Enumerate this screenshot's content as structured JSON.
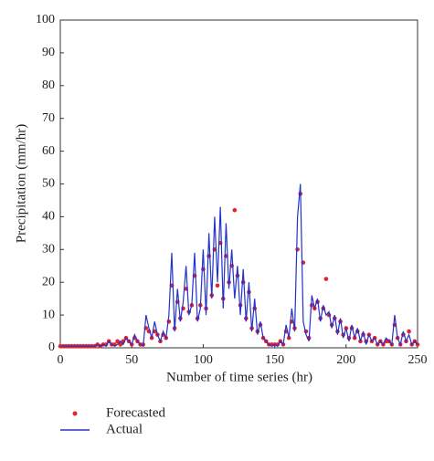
{
  "chart_data": {
    "type": "line",
    "xlabel": "Number of time series (hr)",
    "ylabel": "Precipitation (mm/hr)",
    "x": [
      0,
      2,
      4,
      6,
      8,
      10,
      12,
      14,
      16,
      18,
      20,
      22,
      24,
      26,
      28,
      30,
      32,
      34,
      36,
      38,
      40,
      42,
      44,
      46,
      48,
      50,
      52,
      54,
      56,
      58,
      60,
      62,
      64,
      66,
      68,
      70,
      72,
      74,
      76,
      78,
      80,
      82,
      84,
      86,
      88,
      90,
      92,
      94,
      96,
      98,
      100,
      102,
      104,
      106,
      108,
      110,
      112,
      114,
      116,
      118,
      120,
      122,
      124,
      126,
      128,
      130,
      132,
      134,
      136,
      138,
      140,
      142,
      144,
      146,
      148,
      150,
      152,
      154,
      156,
      158,
      160,
      162,
      164,
      166,
      168,
      170,
      172,
      174,
      176,
      178,
      180,
      182,
      184,
      186,
      188,
      190,
      192,
      194,
      196,
      198,
      200,
      202,
      204,
      206,
      208,
      210,
      212,
      214,
      216,
      218,
      220,
      222,
      224,
      226,
      228,
      230,
      232,
      234,
      236,
      238,
      240,
      242,
      244,
      246,
      248,
      250
    ],
    "series": [
      {
        "name": "Forecasted",
        "color": "#e8222a",
        "style": "markers",
        "values": [
          0.5,
          0.5,
          0.5,
          0.5,
          0.5,
          0.5,
          0.5,
          0.5,
          0.5,
          0.5,
          0.5,
          0.5,
          0.5,
          1,
          0.5,
          1,
          1,
          2,
          1,
          1,
          2,
          1,
          2,
          3,
          2,
          1,
          3,
          2,
          1,
          1,
          6,
          5,
          3,
          5,
          4,
          2,
          4,
          3,
          8,
          19,
          6,
          14,
          9,
          12,
          18,
          11,
          13,
          22,
          9,
          13,
          24,
          12,
          28,
          16,
          30,
          19,
          32,
          15,
          28,
          20,
          25,
          42,
          22,
          13,
          20,
          9,
          17,
          6,
          12,
          5,
          7,
          3,
          2,
          1,
          1,
          1,
          1,
          2,
          1,
          5,
          3,
          8,
          6,
          30,
          47,
          26,
          5,
          3,
          13,
          12,
          14,
          9,
          12,
          21,
          10,
          7,
          9,
          5,
          8,
          4,
          6,
          3,
          6,
          3,
          5,
          2,
          4,
          2,
          4,
          2,
          3,
          1,
          2,
          1,
          2,
          2,
          1,
          7,
          3,
          1,
          4,
          2,
          5,
          1,
          2,
          1
        ]
      },
      {
        "name": "Actual",
        "color": "#2233cc",
        "style": "line",
        "values": [
          0.5,
          0.5,
          0.5,
          0.5,
          0.5,
          0.5,
          0.5,
          0.5,
          0.5,
          0.5,
          0.5,
          0.5,
          0.5,
          1,
          0.5,
          1,
          0.5,
          2,
          1,
          0.5,
          1,
          2,
          1,
          3,
          2,
          1,
          4,
          2,
          1,
          0.5,
          10,
          6,
          3,
          8,
          4,
          2,
          5,
          3,
          10,
          29,
          5,
          18,
          8,
          14,
          25,
          10,
          13,
          29,
          8,
          12,
          30,
          10,
          35,
          15,
          40,
          20,
          43,
          12,
          38,
          18,
          30,
          15,
          25,
          10,
          24,
          8,
          20,
          5,
          15,
          4,
          8,
          3,
          2,
          1,
          0.5,
          1,
          0.5,
          2,
          1,
          7,
          3,
          12,
          5,
          40,
          50,
          8,
          4,
          2,
          16,
          12,
          15,
          8,
          13,
          10,
          11,
          6,
          10,
          4,
          9,
          3,
          6,
          2,
          7,
          3,
          6,
          2,
          5,
          1,
          4,
          2,
          3,
          1,
          2,
          1,
          3,
          2,
          1,
          10,
          3,
          1,
          5,
          2,
          4,
          1,
          2,
          1
        ]
      }
    ],
    "xlim": [
      0,
      250
    ],
    "xticks": [
      0,
      50,
      100,
      150,
      200,
      250
    ],
    "ylim": [
      0,
      100
    ],
    "yticks": [
      0,
      10,
      20,
      30,
      40,
      50,
      60,
      70,
      80,
      90,
      100
    ]
  }
}
